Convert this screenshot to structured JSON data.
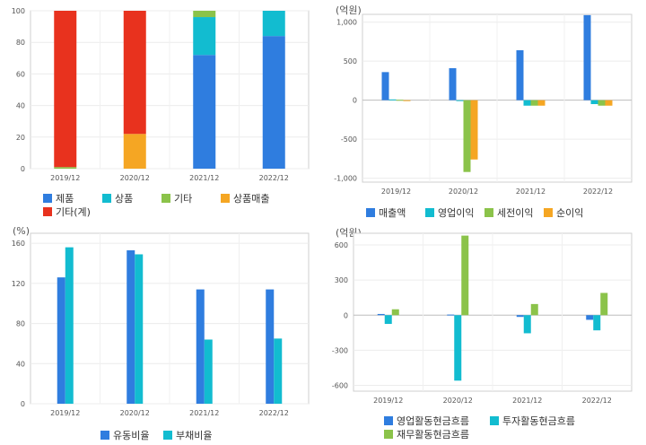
{
  "chart_data": [
    {
      "id": "composition",
      "type": "stacked-bar",
      "unit_label": "",
      "categories": [
        "2019/12",
        "2020/12",
        "2021/12",
        "2022/12"
      ],
      "ylim": [
        0,
        100
      ],
      "yticks": [
        0,
        20,
        40,
        60,
        80,
        100
      ],
      "series": [
        {
          "name": "제품",
          "color": "#2f7ddf",
          "values": [
            0,
            0,
            72,
            84
          ]
        },
        {
          "name": "상품",
          "color": "#12bcd0",
          "values": [
            0,
            0,
            24,
            16
          ]
        },
        {
          "name": "기타",
          "color": "#8bc34a",
          "values": [
            1,
            0,
            4,
            0
          ]
        },
        {
          "name": "상품매출",
          "color": "#f5a623",
          "values": [
            0,
            22,
            0,
            0
          ]
        },
        {
          "name": "기타(계)",
          "color": "#e8321e",
          "values": [
            99,
            78,
            0,
            0
          ]
        }
      ],
      "grid": true,
      "legend": "bottom"
    },
    {
      "id": "income",
      "type": "bar",
      "unit_label": "(억원)",
      "categories": [
        "2019/12",
        "2020/12",
        "2021/12",
        "2022/12"
      ],
      "ylim": [
        -1050,
        1100
      ],
      "yticks": [
        1000,
        500,
        0,
        -500,
        -1000
      ],
      "ytick_labels": [
        "1,000",
        "500",
        "0",
        "-500",
        "-1,000"
      ],
      "series": [
        {
          "name": "매출액",
          "color": "#2f7ddf",
          "values": [
            360,
            410,
            640,
            1090
          ]
        },
        {
          "name": "영업이익",
          "color": "#12bcd0",
          "values": [
            10,
            -5,
            -70,
            -50
          ]
        },
        {
          "name": "세전이익",
          "color": "#8bc34a",
          "values": [
            5,
            -920,
            -70,
            -70
          ]
        },
        {
          "name": "순이익",
          "color": "#f5a623",
          "values": [
            0,
            -760,
            -70,
            -70
          ]
        }
      ],
      "grid": true,
      "legend": "bottom"
    },
    {
      "id": "ratios",
      "type": "bar",
      "unit_label": "(%)",
      "categories": [
        "2019/12",
        "2020/12",
        "2021/12",
        "2022/12"
      ],
      "ylim": [
        0,
        170
      ],
      "yticks": [
        0,
        40,
        80,
        120,
        160
      ],
      "series": [
        {
          "name": "유동비율",
          "color": "#2f7ddf",
          "values": [
            126,
            153,
            114,
            114
          ]
        },
        {
          "name": "부채비율",
          "color": "#12bcd0",
          "values": [
            156,
            149,
            64,
            65
          ]
        }
      ],
      "grid": true,
      "legend": "bottom"
    },
    {
      "id": "cashflow",
      "type": "bar",
      "unit_label": "(억원)",
      "categories": [
        "2019/12",
        "2020/12",
        "2021/12",
        "2022/12"
      ],
      "ylim": [
        -650,
        700
      ],
      "yticks": [
        600,
        300,
        0,
        -300,
        -600
      ],
      "ytick_labels": [
        "600",
        "300",
        "0",
        "-300",
        "-600"
      ],
      "series": [
        {
          "name": "영업활동현금흐름",
          "color": "#2f7ddf",
          "values": [
            10,
            5,
            -15,
            -40
          ]
        },
        {
          "name": "투자활동현금흐름",
          "color": "#12bcd0",
          "values": [
            -75,
            -560,
            -155,
            -130
          ]
        },
        {
          "name": "재무활동현금흐름",
          "color": "#8bc34a",
          "values": [
            50,
            680,
            95,
            190
          ]
        }
      ],
      "grid": true,
      "legend": "bottom"
    }
  ]
}
